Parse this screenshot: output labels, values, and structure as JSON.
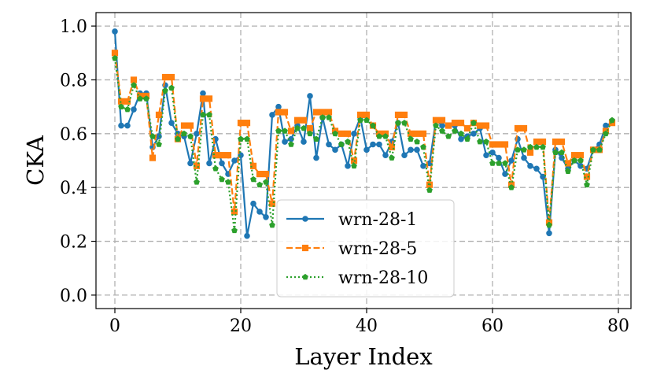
{
  "chart_data": {
    "type": "line",
    "xlabel": "Layer Index",
    "ylabel": "CKA",
    "xlim": [
      -3,
      82
    ],
    "ylim": [
      -0.05,
      1.05
    ],
    "xticks": [
      0,
      20,
      40,
      60,
      80
    ],
    "yticks": [
      0.0,
      0.2,
      0.4,
      0.6,
      0.8,
      1.0
    ],
    "xtick_labels": [
      "0",
      "20",
      "40",
      "60",
      "80"
    ],
    "ytick_labels": [
      "0.0",
      "0.2",
      "0.4",
      "0.6",
      "0.8",
      "1.0"
    ],
    "grid": true,
    "grid_style": "dashed",
    "legend_position": "lower-center",
    "series": [
      {
        "name": "wrn-28-1",
        "color": "#1f77b4",
        "linestyle": "solid",
        "marker": "circle",
        "x": [
          0,
          1,
          2,
          3,
          4,
          5,
          6,
          7,
          8,
          9,
          10,
          11,
          12,
          13,
          14,
          15,
          16,
          17,
          18,
          19,
          20,
          21,
          22,
          23,
          24,
          25,
          26,
          27,
          28,
          29,
          30,
          31,
          32,
          33,
          34,
          35,
          36,
          37,
          38,
          39,
          40,
          41,
          42,
          43,
          44,
          45,
          46,
          47,
          48,
          49,
          50,
          51,
          52,
          53,
          54,
          55,
          56,
          57,
          58,
          59,
          60,
          61,
          62,
          63,
          64,
          65,
          66,
          67,
          68,
          69,
          70,
          71,
          72,
          73,
          74,
          75,
          76,
          77,
          78,
          79
        ],
        "values": [
          0.98,
          0.63,
          0.63,
          0.69,
          0.75,
          0.75,
          0.55,
          0.59,
          0.78,
          0.64,
          0.6,
          0.59,
          0.49,
          0.6,
          0.75,
          0.49,
          0.58,
          0.49,
          0.45,
          0.5,
          0.52,
          0.22,
          0.34,
          0.31,
          0.29,
          0.67,
          0.7,
          0.57,
          0.58,
          0.63,
          0.57,
          0.74,
          0.51,
          0.66,
          0.56,
          0.54,
          0.56,
          0.48,
          0.6,
          0.66,
          0.54,
          0.56,
          0.56,
          0.52,
          0.57,
          0.64,
          0.52,
          0.54,
          0.54,
          0.48,
          0.49,
          0.65,
          0.63,
          0.63,
          0.63,
          0.58,
          0.59,
          0.6,
          0.62,
          0.52,
          0.53,
          0.51,
          0.45,
          0.5,
          0.58,
          0.51,
          0.48,
          0.47,
          0.44,
          0.23,
          0.54,
          0.51,
          0.47,
          0.5,
          0.48,
          0.47,
          0.54,
          0.56,
          0.63,
          0.64
        ]
      },
      {
        "name": "wrn-28-5",
        "color": "#ff7f0e",
        "linestyle": "dashed",
        "marker": "square",
        "x": [
          0,
          1,
          2,
          3,
          4,
          5,
          6,
          7,
          8,
          9,
          10,
          11,
          12,
          13,
          14,
          15,
          16,
          17,
          18,
          19,
          20,
          21,
          22,
          23,
          24,
          25,
          26,
          27,
          28,
          29,
          30,
          31,
          32,
          33,
          34,
          35,
          36,
          37,
          38,
          39,
          40,
          41,
          42,
          43,
          44,
          45,
          46,
          47,
          48,
          49,
          50,
          51,
          52,
          53,
          54,
          55,
          56,
          57,
          58,
          59,
          60,
          61,
          62,
          63,
          64,
          65,
          66,
          67,
          68,
          69,
          70,
          71,
          72,
          73,
          74,
          75,
          76,
          77,
          78,
          79
        ],
        "values": [
          0.9,
          0.72,
          0.72,
          0.8,
          0.74,
          0.74,
          0.51,
          0.67,
          0.81,
          0.81,
          0.58,
          0.63,
          0.63,
          0.48,
          0.73,
          0.73,
          0.52,
          0.52,
          0.52,
          0.31,
          0.64,
          0.64,
          0.48,
          0.45,
          0.45,
          0.34,
          0.68,
          0.68,
          0.61,
          0.65,
          0.65,
          0.62,
          0.68,
          0.68,
          0.68,
          0.61,
          0.6,
          0.6,
          0.5,
          0.67,
          0.67,
          0.63,
          0.6,
          0.6,
          0.55,
          0.67,
          0.67,
          0.6,
          0.6,
          0.6,
          0.41,
          0.65,
          0.65,
          0.63,
          0.64,
          0.64,
          0.62,
          0.64,
          0.63,
          0.63,
          0.56,
          0.56,
          0.56,
          0.41,
          0.62,
          0.62,
          0.53,
          0.57,
          0.57,
          0.27,
          0.57,
          0.57,
          0.49,
          0.52,
          0.52,
          0.44,
          0.54,
          0.54,
          0.61,
          0.64
        ]
      },
      {
        "name": "wrn-28-10",
        "color": "#2ca02c",
        "linestyle": "dotted",
        "marker": "pentagon",
        "x": [
          0,
          1,
          2,
          3,
          4,
          5,
          6,
          7,
          8,
          9,
          10,
          11,
          12,
          13,
          14,
          15,
          16,
          17,
          18,
          19,
          20,
          21,
          22,
          23,
          24,
          25,
          26,
          27,
          28,
          29,
          30,
          31,
          32,
          33,
          34,
          35,
          36,
          37,
          38,
          39,
          40,
          41,
          42,
          43,
          44,
          45,
          46,
          47,
          48,
          49,
          50,
          51,
          52,
          53,
          54,
          55,
          56,
          57,
          58,
          59,
          60,
          61,
          62,
          63,
          64,
          65,
          66,
          67,
          68,
          69,
          70,
          71,
          72,
          73,
          74,
          75,
          76,
          77,
          78,
          79
        ],
        "values": [
          0.88,
          0.7,
          0.69,
          0.78,
          0.73,
          0.73,
          0.59,
          0.56,
          0.76,
          0.77,
          0.58,
          0.6,
          0.59,
          0.42,
          0.67,
          0.67,
          0.47,
          0.43,
          0.42,
          0.24,
          0.58,
          0.58,
          0.43,
          0.41,
          0.42,
          0.26,
          0.61,
          0.61,
          0.56,
          0.62,
          0.62,
          0.6,
          0.58,
          0.66,
          0.66,
          0.6,
          0.56,
          0.57,
          0.48,
          0.65,
          0.65,
          0.63,
          0.59,
          0.59,
          0.51,
          0.64,
          0.64,
          0.58,
          0.57,
          0.55,
          0.39,
          0.63,
          0.61,
          0.59,
          0.61,
          0.6,
          0.58,
          0.64,
          0.57,
          0.57,
          0.49,
          0.49,
          0.49,
          0.4,
          0.54,
          0.54,
          0.55,
          0.55,
          0.55,
          0.26,
          0.53,
          0.53,
          0.46,
          0.5,
          0.5,
          0.41,
          0.54,
          0.54,
          0.6,
          0.65
        ]
      }
    ]
  }
}
